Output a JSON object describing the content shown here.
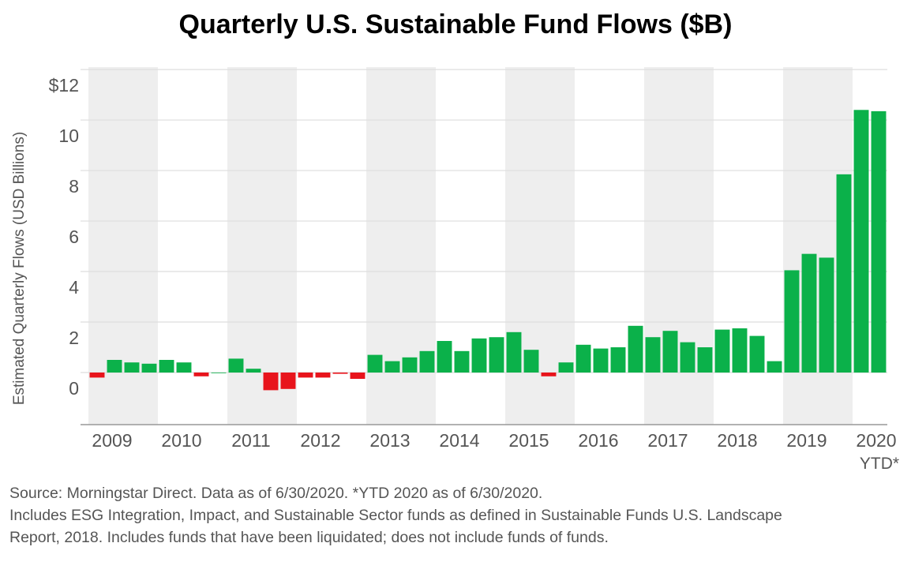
{
  "title": "Quarterly U.S. Sustainable Fund Flows ($B)",
  "source_note": "Source: Morningstar Direct. Data as of 6/30/2020. *YTD 2020 as of 6/30/2020.",
  "includes_note_line1": "Includes ESG Integration, Impact, and Sustainable Sector funds as defined in Sustainable Funds U.S. Landscape",
  "includes_note_line2": "Report, 2018. Includes funds that have been liquidated; does not include funds of funds.",
  "colors": {
    "positive": "#0bb14a",
    "negative": "#e8141c",
    "band": "#eeeeee",
    "grid": "#dddddd",
    "text": "#555555"
  },
  "chart_data": {
    "type": "bar",
    "ylabel": "Estimated Quarterly Flows (USD Billions)",
    "ylim": [
      -2,
      12
    ],
    "yticks": [
      {
        "value": 12,
        "label": "$12"
      },
      {
        "value": 10,
        "label": "10"
      },
      {
        "value": 8,
        "label": "8"
      },
      {
        "value": 6,
        "label": "6"
      },
      {
        "value": 4,
        "label": "4"
      },
      {
        "value": 2,
        "label": "2"
      },
      {
        "value": 0,
        "label": "0"
      }
    ],
    "grid": true,
    "years": [
      "2009",
      "2010",
      "2011",
      "2012",
      "2013",
      "2014",
      "2015",
      "2016",
      "2017",
      "2018",
      "2019",
      "2020"
    ],
    "year_sublabels": {
      "2020": "YTD*"
    },
    "values": [
      -0.2,
      0.5,
      0.4,
      0.35,
      0.5,
      0.4,
      -0.15,
      0.0,
      0.55,
      0.15,
      -0.7,
      -0.65,
      -0.2,
      -0.2,
      -0.05,
      -0.25,
      0.7,
      0.45,
      0.6,
      0.85,
      1.25,
      0.85,
      1.35,
      1.4,
      1.6,
      0.9,
      -0.15,
      0.4,
      1.1,
      0.95,
      1.0,
      1.85,
      1.4,
      1.65,
      1.2,
      1.0,
      1.7,
      1.75,
      1.45,
      0.45,
      4.05,
      4.7,
      4.55,
      7.85,
      10.4,
      10.35
    ]
  }
}
